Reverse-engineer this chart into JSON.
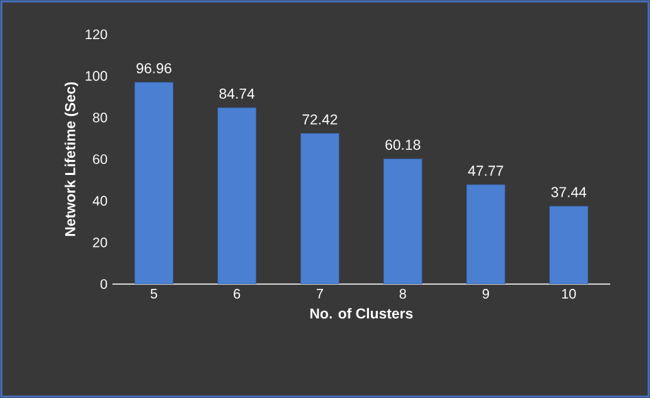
{
  "chart_data": {
    "type": "bar",
    "xlabel": "No. of Clusters",
    "ylabel": "Network Lifetime (Sec)",
    "categories": [
      "5",
      "6",
      "7",
      "8",
      "9",
      "10"
    ],
    "values": [
      96.96,
      84.74,
      72.42,
      60.18,
      47.77,
      37.44
    ],
    "color": "#4a7fd2",
    "ylim": [
      0,
      120
    ],
    "yticks": [
      0,
      20,
      40,
      60,
      80,
      100,
      120
    ],
    "data_labels": true,
    "grid": false
  }
}
